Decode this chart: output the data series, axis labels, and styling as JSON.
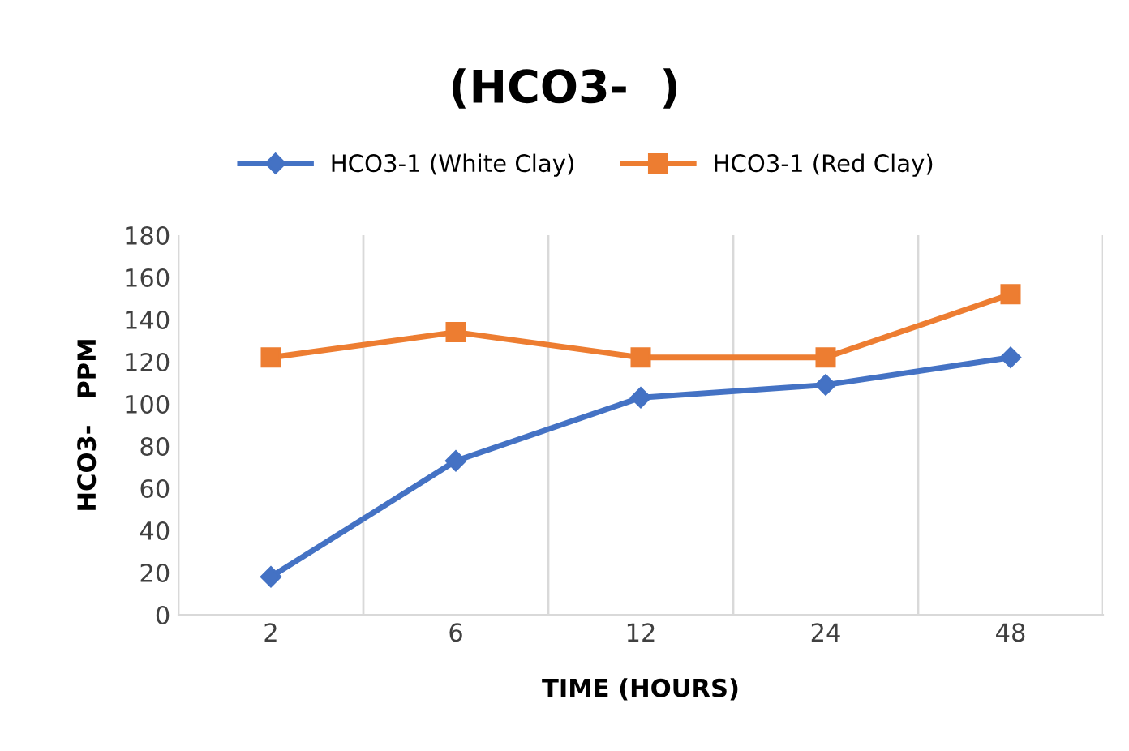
{
  "chart_data": {
    "type": "line",
    "title": "(HCO3-  )",
    "xlabel": "TIME (HOURS)",
    "ylabel": "HCO3-   PPM",
    "categories": [
      "2",
      "6",
      "12",
      "24",
      "48"
    ],
    "series": [
      {
        "name": "HCO3-1 (White Clay)",
        "color": "#4472c4",
        "marker": "diamond",
        "values": [
          18,
          73,
          103,
          109,
          122
        ]
      },
      {
        "name": "HCO3-1 (Red Clay)",
        "color": "#ed7d31",
        "marker": "square",
        "values": [
          122,
          134,
          122,
          122,
          152
        ]
      }
    ],
    "ylim": [
      0,
      180
    ],
    "yticks": [
      0,
      20,
      40,
      60,
      80,
      100,
      120,
      140,
      160,
      180
    ],
    "grid": "x",
    "legend": "top",
    "line_style": "solid"
  }
}
